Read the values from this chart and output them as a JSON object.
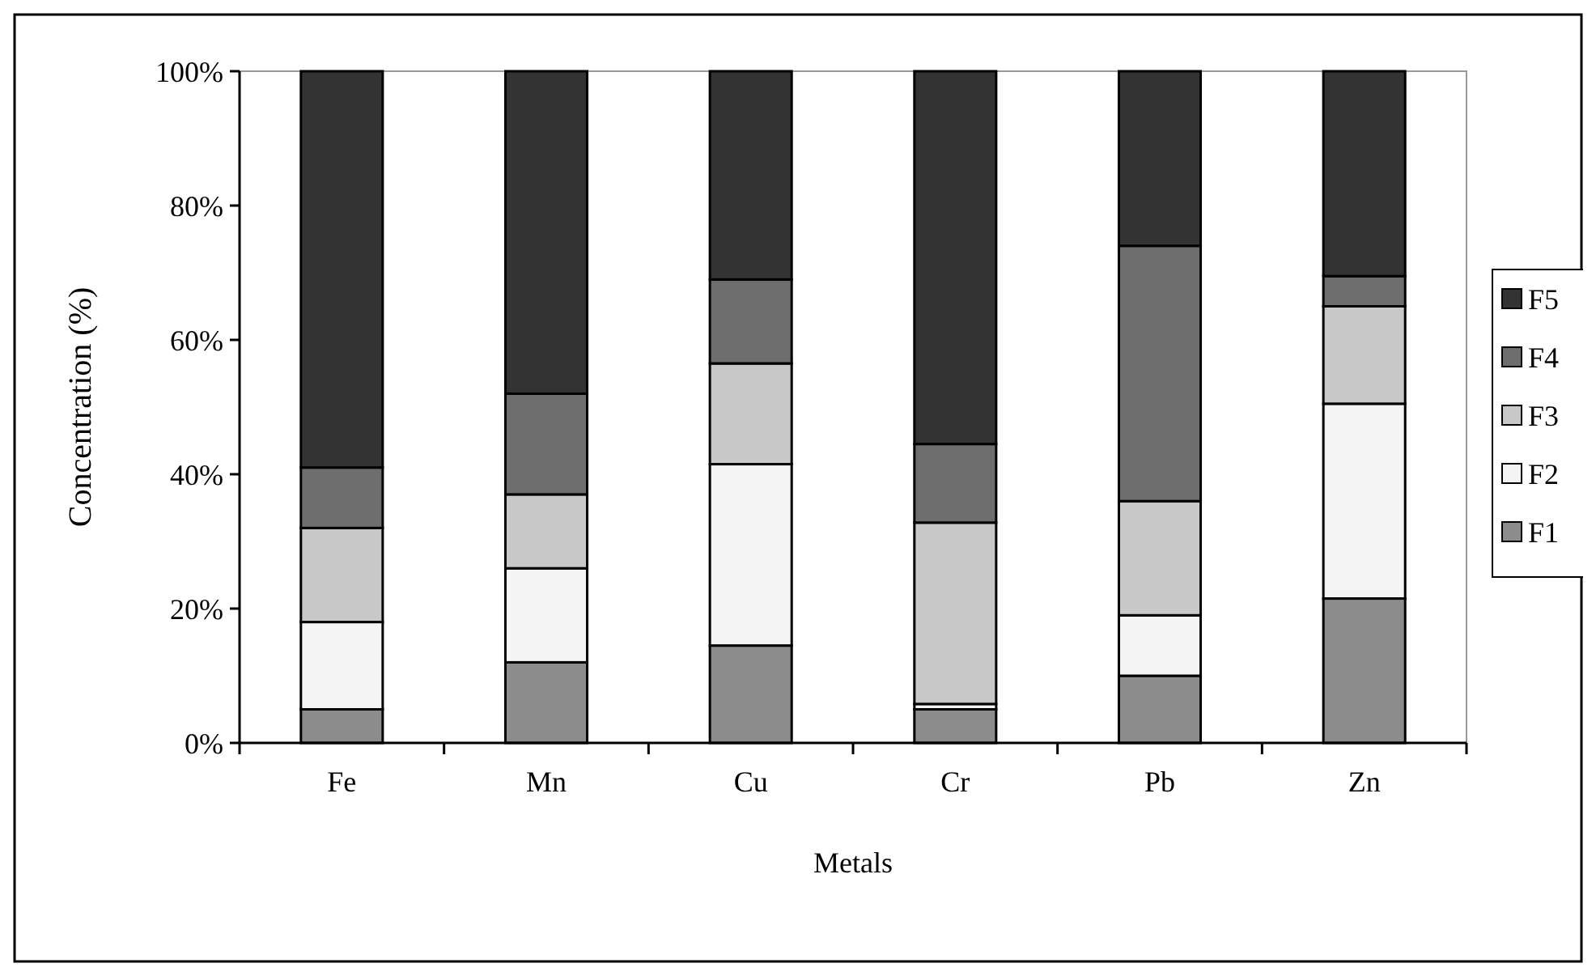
{
  "chart_data": {
    "type": "bar",
    "stacked": true,
    "xlabel": "Metals",
    "ylabel": "Concentration (%)",
    "categories": [
      "Fe",
      "Mn",
      "Cu",
      "Cr",
      "Pb",
      "Zn"
    ],
    "series": [
      {
        "name": "F1",
        "color": "#8c8c8c",
        "values": [
          5,
          12,
          14.5,
          5,
          10,
          21.5
        ]
      },
      {
        "name": "F2",
        "color": "#f4f4f4",
        "values": [
          13,
          14,
          27,
          0.8,
          9,
          29
        ]
      },
      {
        "name": "F3",
        "color": "#c8c8c8",
        "values": [
          14,
          11,
          15,
          27,
          17,
          14.5
        ]
      },
      {
        "name": "F4",
        "color": "#6e6e6e",
        "values": [
          9,
          15,
          12.5,
          11.7,
          38,
          4.5
        ]
      },
      {
        "name": "F5",
        "color": "#333333",
        "values": [
          59,
          48,
          31,
          55.5,
          26,
          30.5
        ]
      }
    ],
    "ylim": [
      0,
      100
    ],
    "yticks": [
      {
        "value": 0,
        "label": "0%"
      },
      {
        "value": 20,
        "label": "20%"
      },
      {
        "value": 40,
        "label": "40%"
      },
      {
        "value": 60,
        "label": "60%"
      },
      {
        "value": 80,
        "label": "80%"
      },
      {
        "value": 100,
        "label": "100%"
      }
    ],
    "grid": false,
    "legend": "right"
  }
}
